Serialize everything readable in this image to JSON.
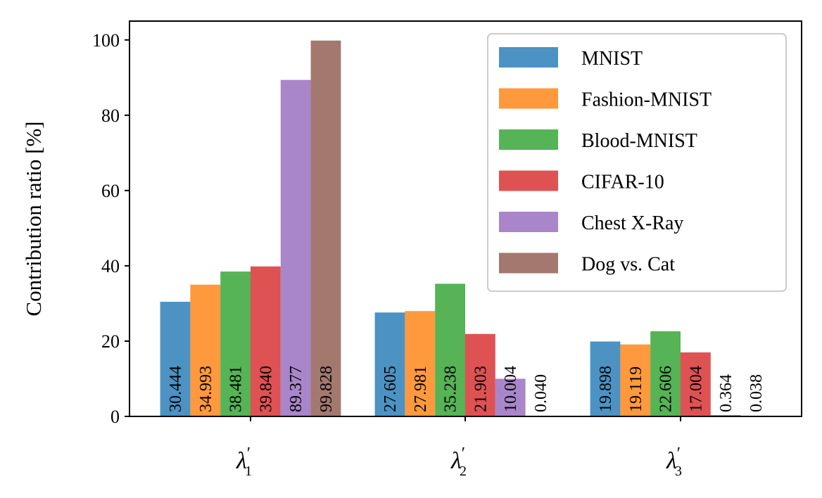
{
  "chart_data": {
    "type": "bar",
    "title": "",
    "xlabel": "",
    "ylabel": "Contribution ratio [%]",
    "ylim": [
      0,
      105
    ],
    "yticks": [
      0,
      20,
      40,
      60,
      80,
      100
    ],
    "categories": [
      {
        "base": "λ",
        "prime": "′",
        "sub": "1"
      },
      {
        "base": "λ",
        "prime": "′",
        "sub": "2"
      },
      {
        "base": "λ",
        "prime": "′",
        "sub": "3"
      }
    ],
    "series": [
      {
        "name": "MNIST",
        "color": "#1f77b4",
        "values": [
          30.444,
          27.605,
          19.898
        ],
        "labels": [
          "30.444",
          "27.605",
          "19.898"
        ]
      },
      {
        "name": "Fashion-MNIST",
        "color": "#ff7f0e",
        "values": [
          34.993,
          27.981,
          19.119
        ],
        "labels": [
          "34.993",
          "27.981",
          "19.119"
        ]
      },
      {
        "name": "Blood-MNIST",
        "color": "#2ca02c",
        "values": [
          38.481,
          35.238,
          22.606
        ],
        "labels": [
          "38.481",
          "35.238",
          "22.606"
        ]
      },
      {
        "name": "CIFAR-10",
        "color": "#d62728",
        "values": [
          39.84,
          21.903,
          17.004
        ],
        "labels": [
          "39.840",
          "21.903",
          "17.004"
        ]
      },
      {
        "name": "Chest X-Ray",
        "color": "#9467bd",
        "values": [
          89.377,
          10.004,
          0.364
        ],
        "labels": [
          "89.377",
          "10.004",
          "0.364"
        ]
      },
      {
        "name": "Dog vs. Cat",
        "color": "#8c564b",
        "values": [
          99.828,
          0.04,
          0.038
        ],
        "labels": [
          "99.828",
          "0.040",
          "0.038"
        ]
      }
    ],
    "legend_position": "top-right",
    "bar_alpha": 0.8
  }
}
